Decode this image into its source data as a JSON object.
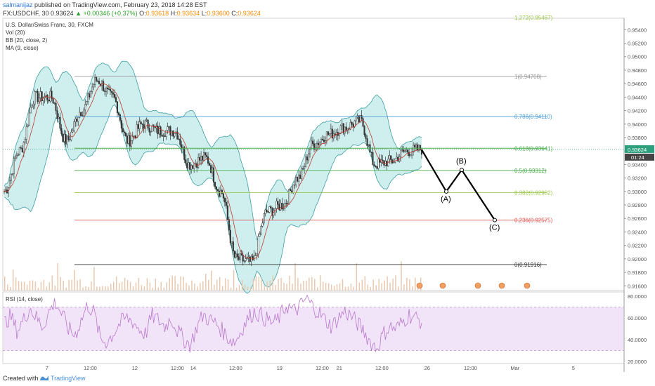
{
  "header": {
    "user": "salmanijaz",
    "published": "published on TradingView.com, February 23, 2018 14:28 EST",
    "symbol": "FX:USDCHF, 30",
    "price": "0.93624",
    "change": "▲ +0.00346 (+0.37%)",
    "o_label": "O:",
    "o": "0.93618",
    "h_label": "H:",
    "h": "0.93634",
    "l_label": "L:",
    "l": "0.93600",
    "c_label": "C:",
    "c": "0.93624"
  },
  "indicators": {
    "title": "U.S. Dollar/Swiss Franc, 30, FXCM",
    "vol": "Vol (20)",
    "bb": "BB (20, close, 2)",
    "ma": "MA (9, close)",
    "rsi": "RSI (14, close)"
  },
  "footer": {
    "created": "Created with",
    "brand": "TradingView"
  },
  "colors": {
    "bb_fill": "#cfeeee",
    "bb_line": "#3d9ea0",
    "ma_line": "#c0392b",
    "candle": "#333333",
    "rsi_line": "#b878cc",
    "rsi_band": "#f2e4f8",
    "fib_1": "#999999",
    "fib_786": "#4f9fd6",
    "fib_618": "#4cae4c",
    "fib_5": "#4cae4c",
    "fib_382": "#9bc94a",
    "fib_236": "#e05555",
    "fib_0": "#333333",
    "price_tag": "#2ca07c"
  },
  "chart_data": [
    {
      "type": "line",
      "title": "U.S. Dollar/Swiss Franc, 30, FXCM",
      "series": [
        {
          "name": "",
          "points": [
            [
              "Feb 5",
              0.93
            ],
            [
              "Feb 6",
              0.936
            ],
            [
              "Feb 6 12:00",
              0.944
            ],
            [
              "7",
              0.944
            ],
            [
              "7 12:00",
              0.9375
            ],
            [
              "8",
              0.942
            ],
            [
              "8 12:00",
              0.9465
            ],
            [
              "9",
              0.944
            ],
            [
              "9 12:00",
              0.9375
            ],
            [
              "12",
              0.94
            ],
            [
              "12 12:00",
              0.939
            ],
            [
              "13",
              0.939
            ],
            [
              "13 12:00",
              0.934
            ],
            [
              "14",
              0.935
            ],
            [
              "14 12:00",
              0.93
            ],
            [
              "15",
              0.92
            ],
            [
              "15 12:00",
              0.9195
            ],
            [
              "16",
              0.927
            ],
            [
              "16 12:00",
              0.928
            ],
            [
              "19",
              0.932
            ],
            [
              "19 12:00",
              0.937
            ],
            [
              "20",
              0.9385
            ],
            [
              "20 12:00",
              0.9395
            ],
            [
              "21",
              0.9405
            ],
            [
              "21 12:00",
              0.934
            ],
            [
              "22",
              0.9345
            ],
            [
              "22 12:00",
              0.936
            ],
            [
              "23",
              0.93624
            ]
          ]
        }
      ],
      "projection": [
        {
          "label": "",
          "x": "23 14:00",
          "y": 0.9362
        },
        {
          "label": "(A)",
          "x": "26 02:00",
          "y": 0.93
        },
        {
          "label": "(B)",
          "x": "26 08:00",
          "y": 0.9332
        },
        {
          "label": "(C)",
          "x": "26 20:00",
          "y": 0.92575
        }
      ],
      "fibonacci": [
        {
          "label": "1(0.94708)",
          "value": 0.94708
        },
        {
          "label": "0.786(0.94110)",
          "value": 0.9411
        },
        {
          "label": "0.618(0.93641)",
          "value": 0.93641
        },
        {
          "label": "0.5(0.93312)",
          "value": 0.93312
        },
        {
          "label": "0.382(0.92982)",
          "value": 0.92982
        },
        {
          "label": "0.236(0.92575)",
          "value": 0.92575
        },
        {
          "label": "0(0.91916)",
          "value": 0.91916
        }
      ],
      "top_partial_label": "1.272(0.95467)",
      "price_tag": "0.93624",
      "time_tag": "01:24",
      "ylim": [
        0.9153,
        0.9557
      ],
      "ytick_labels": [
        "0.95400",
        "0.95200",
        "0.95000",
        "0.94800",
        "0.94600",
        "0.94400",
        "0.94200",
        "0.94000",
        "0.93800",
        "0.93600",
        "0.93400",
        "0.93200",
        "0.93000",
        "0.92800",
        "0.92600",
        "0.92400",
        "0.92200",
        "0.92000",
        "0.91800",
        "0.91600"
      ],
      "yticks": [
        0.954,
        0.952,
        0.95,
        0.948,
        0.946,
        0.944,
        0.942,
        0.94,
        0.938,
        0.936,
        0.934,
        0.932,
        0.93,
        0.928,
        0.926,
        0.924,
        0.922,
        0.92,
        0.918,
        0.916
      ],
      "xtick_labels": [
        "7",
        "12:00",
        "12",
        "12:00",
        "14",
        "12:00",
        "19",
        "12:00",
        "21",
        "12:00",
        "26",
        "12:00",
        "Mar",
        "5"
      ],
      "grid": false
    },
    {
      "type": "line",
      "title": "RSI (14, close)",
      "series": [
        {
          "name": "",
          "values": [
            55,
            62,
            48,
            58,
            70,
            60,
            52,
            66,
            75,
            63,
            50,
            44,
            58,
            72,
            65,
            40,
            38,
            46,
            55,
            60,
            57,
            50,
            45,
            62,
            58,
            52,
            60,
            48,
            40,
            35,
            52,
            63,
            58,
            55,
            48,
            41,
            38,
            50,
            60,
            66,
            62,
            58,
            55,
            62,
            72,
            66,
            70,
            78,
            71,
            65,
            58,
            52,
            60,
            66,
            62,
            55,
            48,
            38,
            32,
            45,
            52,
            50,
            56,
            63,
            60,
            57
          ]
        }
      ],
      "ylim": [
        18,
        84
      ],
      "bands": [
        30,
        70
      ],
      "yticks": [
        80,
        60,
        40,
        20
      ],
      "ytick_labels": [
        "80.0000",
        "60.0000",
        "40.0000",
        "20.0000"
      ],
      "grid": false
    }
  ]
}
